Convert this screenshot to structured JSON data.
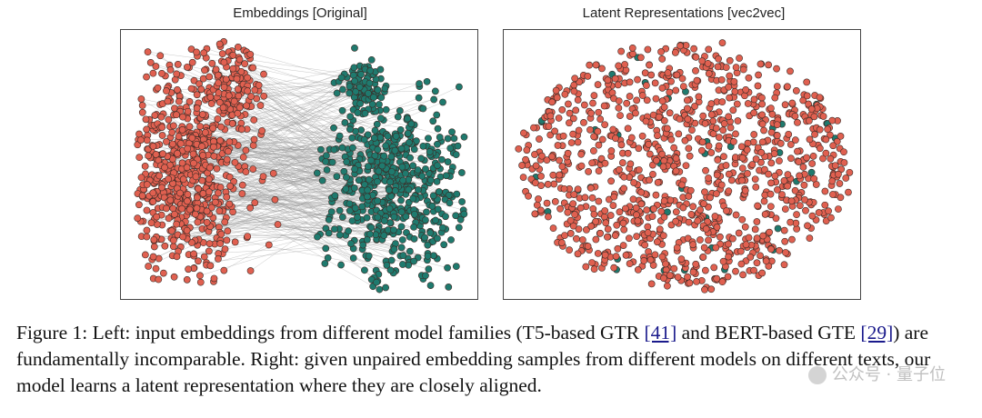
{
  "figure": {
    "left_title": "Embeddings  [Original]",
    "right_title": "Latent Representations  [vec2vec]"
  },
  "colors": {
    "red": "#e06050",
    "teal": "#1f7a6e",
    "edge": "#9a9a9a",
    "frame": "#444444"
  },
  "caption": {
    "p1": "Figure 1: Left: input embeddings from different model families (T5-based GTR ",
    "ref1": "[41]",
    "p2": " and BERT-based GTE ",
    "ref2": "[29]",
    "p3": ") are fundamentally incomparable. Right: given unpaired embedding samples from different models on different texts, our model learns a latent representation where they are closely aligned."
  },
  "watermark": "公众号 · 量子位",
  "chart_data": [
    {
      "type": "scatter",
      "title": "Embeddings  [Original]",
      "series": [
        {
          "name": "GTR (T5-based)",
          "color": "#e06050",
          "cluster": "left"
        },
        {
          "name": "GTE (BERT-based)",
          "color": "#1f7a6e",
          "cluster": "right"
        }
      ],
      "paired_lines": true,
      "axes": false
    },
    {
      "type": "scatter",
      "title": "Latent Representations  [vec2vec]",
      "series": [
        {
          "name": "GTR (T5-based)",
          "color": "#e06050"
        },
        {
          "name": "GTE (BERT-based)",
          "color": "#1f7a6e"
        }
      ],
      "distribution": "overlapping ellipse",
      "axes": false
    }
  ]
}
